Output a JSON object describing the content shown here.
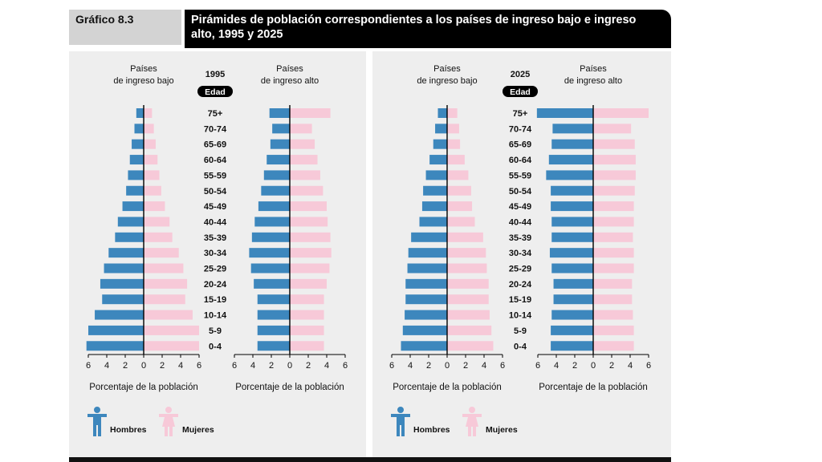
{
  "header": {
    "tag": "Gráfico 8.3",
    "title": "Pirámides de población correspondientes a los países de ingreso bajo e ingreso alto, 1995 y 2025"
  },
  "colors": {
    "men": "#3d87bd",
    "women": "#f7c9d8",
    "panel": "#eeeeee",
    "axis": "#000000"
  },
  "legend": {
    "men": "Hombres",
    "women": "Mujeres",
    "men_icon": "man-icon",
    "women_icon": "woman-icon"
  },
  "age_header": "Edad",
  "chart_data": [
    {
      "type": "bar",
      "year": "1995",
      "age_groups": [
        "75+",
        "70-74",
        "65-69",
        "60-64",
        "55-59",
        "50-54",
        "45-49",
        "40-44",
        "35-39",
        "30-34",
        "25-29",
        "20-24",
        "15-19",
        "10-14",
        "5-9",
        "0-4"
      ],
      "pyramids": [
        {
          "title": "Países de ingreso bajo",
          "xlabel": "Porcentaje de la población",
          "xticks": [
            "6",
            "4",
            "2",
            "0",
            "2",
            "4",
            "6"
          ],
          "xlim": [
            -6,
            6
          ],
          "series": [
            {
              "name": "Hombres",
              "values": [
                0.8,
                1.0,
                1.3,
                1.5,
                1.7,
                1.9,
                2.3,
                2.8,
                3.1,
                3.8,
                4.3,
                4.7,
                4.5,
                5.3,
                6.0,
                6.2
              ]
            },
            {
              "name": "Mujeres",
              "values": [
                0.9,
                1.1,
                1.3,
                1.5,
                1.7,
                1.9,
                2.3,
                2.8,
                3.1,
                3.8,
                4.3,
                4.7,
                4.5,
                5.3,
                6.0,
                6.0
              ]
            }
          ]
        },
        {
          "title": "Países de ingreso alto",
          "xlabel": "Porcentaje de la población",
          "xticks": [
            "6",
            "4",
            "2",
            "0",
            "2",
            "4",
            "6"
          ],
          "xlim": [
            -6,
            6
          ],
          "series": [
            {
              "name": "Hombres",
              "values": [
                2.2,
                1.9,
                2.1,
                2.5,
                2.8,
                3.1,
                3.4,
                3.8,
                4.1,
                4.4,
                4.2,
                3.9,
                3.5,
                3.5,
                3.5,
                3.5
              ]
            },
            {
              "name": "Mujeres",
              "values": [
                4.4,
                2.4,
                2.7,
                3.0,
                3.3,
                3.6,
                4.0,
                4.1,
                4.4,
                4.5,
                4.3,
                4.0,
                3.7,
                3.7,
                3.7,
                3.7
              ]
            }
          ]
        }
      ]
    },
    {
      "type": "bar",
      "year": "2025",
      "age_groups": [
        "75+",
        "70-74",
        "65-69",
        "60-64",
        "55-59",
        "50-54",
        "45-49",
        "40-44",
        "35-39",
        "30-34",
        "25-29",
        "20-24",
        "15-19",
        "10-14",
        "5-9",
        "0-4"
      ],
      "pyramids": [
        {
          "title": "Países de ingreso bajo",
          "xlabel": "Porcentaje de la población",
          "xticks": [
            "6",
            "4",
            "2",
            "0",
            "2",
            "4",
            "6"
          ],
          "xlim": [
            -6,
            6
          ],
          "series": [
            {
              "name": "Hombres",
              "values": [
                1.0,
                1.3,
                1.5,
                1.9,
                2.3,
                2.6,
                2.7,
                3.0,
                3.9,
                4.2,
                4.3,
                4.5,
                4.5,
                4.6,
                4.8,
                5.0
              ]
            },
            {
              "name": "Mujeres",
              "values": [
                1.1,
                1.3,
                1.4,
                1.9,
                2.3,
                2.6,
                2.7,
                3.0,
                3.9,
                4.2,
                4.3,
                4.5,
                4.5,
                4.6,
                4.8,
                5.0
              ]
            }
          ]
        },
        {
          "title": "Países de ingreso alto",
          "xlabel": "Porcentaje de la población",
          "xticks": [
            "6",
            "4",
            "2",
            "0",
            "2",
            "4",
            "6"
          ],
          "xlim": [
            -6,
            6
          ],
          "series": [
            {
              "name": "Hombres",
              "values": [
                6.1,
                4.4,
                4.5,
                4.8,
                5.1,
                4.6,
                4.6,
                4.5,
                4.5,
                4.7,
                4.5,
                4.3,
                4.3,
                4.5,
                4.6,
                4.6
              ]
            },
            {
              "name": "Mujeres",
              "values": [
                6.0,
                4.1,
                4.5,
                4.6,
                4.6,
                4.5,
                4.4,
                4.4,
                4.3,
                4.4,
                4.4,
                4.2,
                4.2,
                4.3,
                4.4,
                4.4
              ]
            }
          ]
        }
      ]
    }
  ]
}
